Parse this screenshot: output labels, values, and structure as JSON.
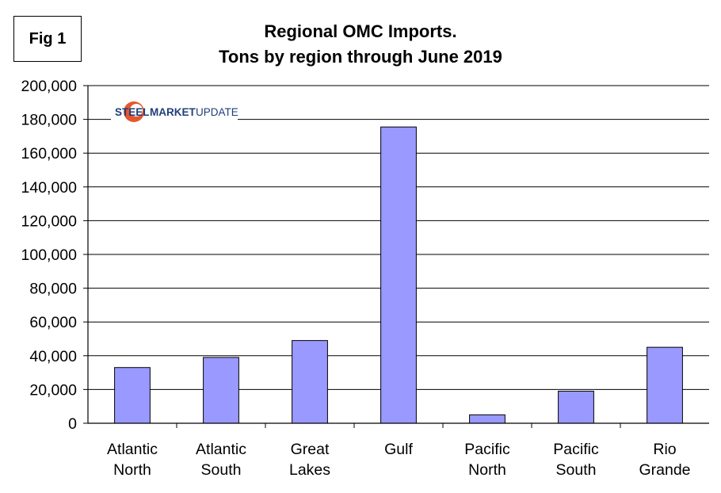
{
  "figure_label": "Fig 1",
  "logo": {
    "brand": "STEEL",
    "brand2": "MARKET",
    "suffix": "UPDATE"
  },
  "colors": {
    "bar_fill": "#9999ff",
    "bar_stroke": "#000000",
    "grid": "#000000"
  },
  "chart_data": {
    "type": "bar",
    "title": "Regional OMC Imports.",
    "subtitle": "Tons by region through June 2019",
    "xlabel": "",
    "ylabel": "",
    "categories": [
      [
        "Atlantic",
        "North"
      ],
      [
        "Atlantic",
        "South"
      ],
      [
        "Great",
        "Lakes"
      ],
      [
        "Gulf"
      ],
      [
        "Pacific",
        "North"
      ],
      [
        "Pacific",
        "South"
      ],
      [
        "Rio",
        "Grande"
      ]
    ],
    "values": [
      33000,
      39000,
      49000,
      175500,
      5000,
      19000,
      45000
    ],
    "ylim": [
      0,
      200000
    ],
    "yticks": [
      "0",
      "20,000",
      "40,000",
      "60,000",
      "80,000",
      "100,000",
      "120,000",
      "140,000",
      "160,000",
      "180,000",
      "200,000"
    ],
    "grid": true,
    "legend": "none"
  }
}
